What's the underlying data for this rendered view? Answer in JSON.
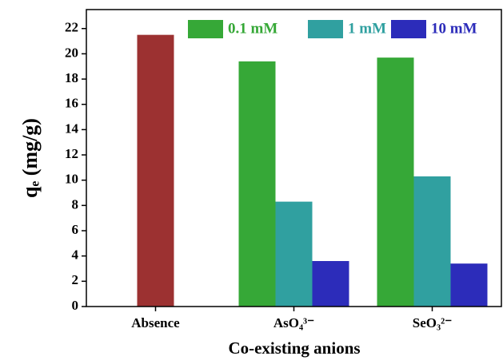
{
  "chart_data": {
    "type": "bar",
    "x_label": "Co-existing anions",
    "y_label": "qₑ (mg/g)",
    "categories": [
      "Absence",
      "AsO₄³⁻",
      "SeO₃²⁻"
    ],
    "series": [
      {
        "color": "#9c3131",
        "values": [
          21.5,
          null,
          null
        ]
      },
      {
        "name": "0.1 mM",
        "color": "#36a837",
        "values": [
          null,
          19.4,
          19.7
        ]
      },
      {
        "name": "1 mM",
        "color": "#30a0a0",
        "values": [
          null,
          8.3,
          10.3
        ]
      },
      {
        "name": "10 mM",
        "color": "#2c2cba",
        "values": [
          null,
          3.6,
          3.4
        ]
      }
    ],
    "ylim": [
      0,
      23.5
    ],
    "yticks": [
      0,
      2,
      4,
      6,
      8,
      10,
      12,
      14,
      16,
      18,
      20,
      22
    ],
    "legend": "top-right"
  }
}
